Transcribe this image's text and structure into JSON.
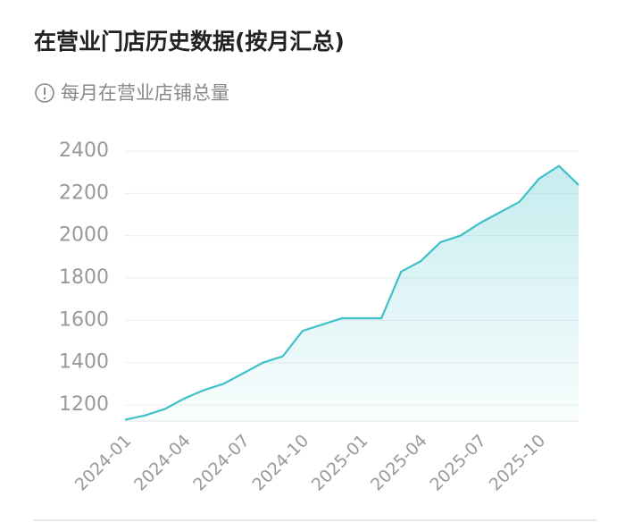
{
  "chart_data": {
    "type": "line",
    "title": "在营业门店历史数据(按月汇总)",
    "subtitle": "每月在营业店铺总量",
    "categories": [
      "2024-01",
      null,
      null,
      "2024-04",
      null,
      null,
      "2024-07",
      null,
      null,
      "2024-10",
      null,
      null,
      "2025-01",
      null,
      null,
      "2025-04",
      null,
      null,
      "2025-07",
      null,
      null,
      "2025-10",
      null,
      null
    ],
    "values": [
      1130,
      1150,
      1180,
      1230,
      1270,
      1300,
      1350,
      1400,
      1430,
      1550,
      1580,
      1610,
      1610,
      1610,
      1830,
      1880,
      1970,
      2000,
      2060,
      2110,
      2160,
      2270,
      2330,
      2240
    ],
    "color": "#3fc1c9",
    "ylim": [
      1124,
      2400
    ],
    "yticks": [
      1200,
      1400,
      1600,
      1800,
      2000,
      2200,
      2400
    ],
    "grid": true
  }
}
